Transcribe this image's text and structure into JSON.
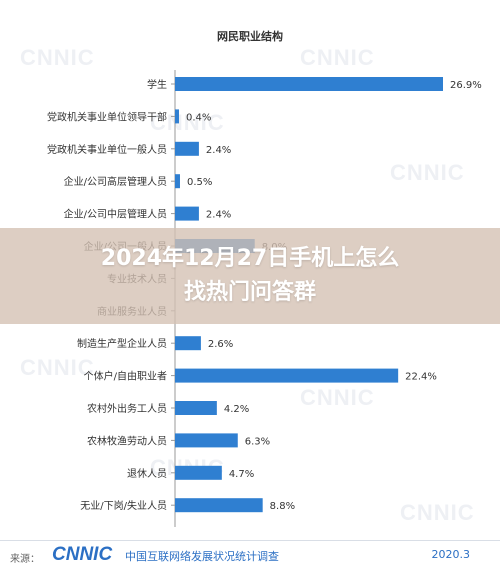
{
  "overlay": {
    "title": "2024年12月27日手机上怎么找热门问答群"
  },
  "watermark": {
    "text": "CNNIC"
  },
  "footer": {
    "source_label": "来源：",
    "logo": "CNNIC",
    "survey": "中国互联网络发展状况统计调查",
    "date": "2020.3"
  },
  "colors": {
    "bar": "#2f7fd1",
    "axis": "#999999",
    "label": "#333333"
  },
  "chart_data": {
    "type": "bar",
    "orientation": "horizontal",
    "title": "网民职业结构",
    "categories": [
      "学生",
      "党政机关事业单位领导干部",
      "党政机关事业单位一般人员",
      "企业/公司高层管理人员",
      "企业/公司中层管理人员",
      "企业/公司一般人员",
      "专业技术人员",
      "商业服务业人员",
      "制造生产型企业人员",
      "个体户/自由职业者",
      "农村外出务工人员",
      "农林牧渔劳动人员",
      "退休人员",
      "无业/下岗/失业人员"
    ],
    "values": [
      26.9,
      0.4,
      2.4,
      0.5,
      2.4,
      8.0,
      null,
      null,
      2.6,
      22.4,
      4.2,
      6.3,
      4.7,
      8.8
    ],
    "value_labels": [
      "26.9%",
      "0.4%",
      "2.4%",
      "0.5%",
      "2.4%",
      "8.0%",
      "",
      "",
      "2.6%",
      "22.4%",
      "4.2%",
      "6.3%",
      "4.7%",
      "8.8%"
    ],
    "xlim": [
      0,
      26.9
    ],
    "grid": false,
    "legend": "none"
  }
}
